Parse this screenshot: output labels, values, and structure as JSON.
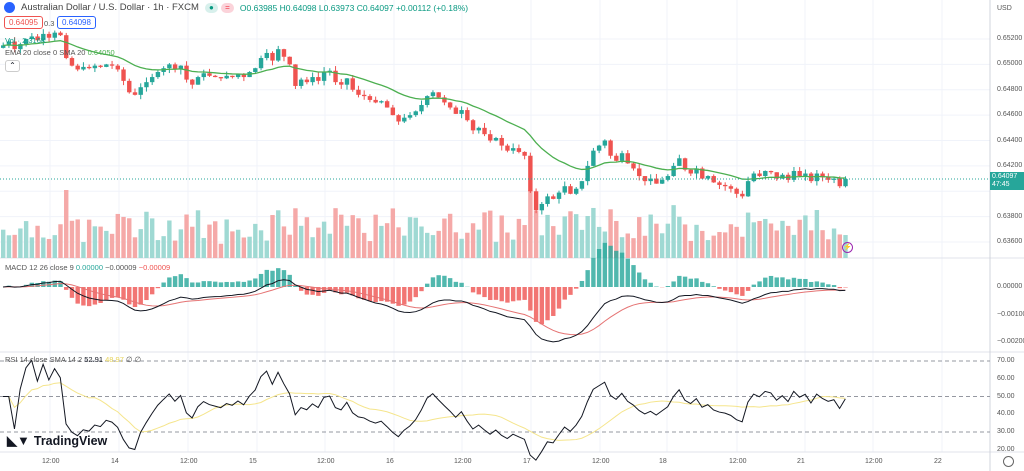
{
  "header": {
    "symbol": "Australian Dollar / U.S. Dollar · 1h · FXCM",
    "open": "O0.63985",
    "high": "H0.64098",
    "low": "L0.63973",
    "close": "C0.64097",
    "change": "+0.00112 (+0.18%)",
    "sell_price": "0.64095",
    "spread": "0.3",
    "buy_price": "0.64098",
    "volume_label": "Vol · 2.316K",
    "ema_label": "EMA 20 close 0 SMA 20",
    "ema_value": "0.64050"
  },
  "macd": {
    "label": "MACD 12 26 close 9",
    "hist": "0.00000",
    "macd": "−0.00009",
    "signal": "−0.00009"
  },
  "rsi": {
    "label": "RSI 14 close SMA 14 2",
    "value": "52.91",
    "sma": "48.97",
    "extra": "∅ ∅"
  },
  "price_axis": {
    "currency": "USD",
    "ticks": [
      "0.65200",
      "0.65000",
      "0.64800",
      "0.64600",
      "0.64400",
      "0.64200",
      "0.63800",
      "0.63600"
    ],
    "current_price": "0.64097",
    "countdown": "47:45"
  },
  "macd_axis": [
    "0.00000",
    "−0.00100",
    "−0.00200"
  ],
  "rsi_axis": [
    "70.00",
    "60.00",
    "50.00",
    "40.00",
    "30.00",
    "20.00"
  ],
  "time_axis": [
    "12:00",
    "14",
    "12:00",
    "15",
    "12:00",
    "16",
    "12:00",
    "17",
    "12:00",
    "18",
    "12:00",
    "21",
    "12:00",
    "22"
  ],
  "brand": "TradingView",
  "colors": {
    "up": "#26a69a",
    "down": "#ef5350",
    "ema": "#4caf50",
    "macd": "#131722",
    "signal": "#e57373",
    "rsi": "#131722",
    "rsi_sma": "#f5e58c"
  },
  "chart_data": {
    "type": "candlestick",
    "closes": [
      0.6515,
      0.6518,
      0.6512,
      0.6516,
      0.652,
      0.6522,
      0.6519,
      0.6524,
      0.6521,
      0.6525,
      0.6523,
      0.6505,
      0.6499,
      0.6496,
      0.6498,
      0.6497,
      0.6499,
      0.6498,
      0.65,
      0.6499,
      0.6496,
      0.6487,
      0.6478,
      0.6476,
      0.6482,
      0.6486,
      0.649,
      0.6494,
      0.6497,
      0.65,
      0.6496,
      0.6499,
      0.6488,
      0.6484,
      0.649,
      0.6493,
      0.6491,
      0.649,
      0.6489,
      0.6491,
      0.649,
      0.6492,
      0.649,
      0.6494,
      0.6497,
      0.6505,
      0.6509,
      0.6503,
      0.6512,
      0.6506,
      0.65,
      0.6483,
      0.6488,
      0.6486,
      0.649,
      0.6487,
      0.6494,
      0.6495,
      0.6486,
      0.6484,
      0.6489,
      0.648,
      0.6476,
      0.6475,
      0.6472,
      0.647,
      0.6471,
      0.6466,
      0.646,
      0.6455,
      0.6458,
      0.646,
      0.6463,
      0.6468,
      0.6475,
      0.6478,
      0.6474,
      0.647,
      0.6466,
      0.6461,
      0.6464,
      0.6456,
      0.6448,
      0.645,
      0.6445,
      0.644,
      0.6442,
      0.6436,
      0.6432,
      0.6434,
      0.6431,
      0.6428,
      0.64,
      0.6385,
      0.639,
      0.6396,
      0.6394,
      0.6399,
      0.6404,
      0.6398,
      0.6402,
      0.6408,
      0.642,
      0.6432,
      0.6436,
      0.644,
      0.6428,
      0.6424,
      0.643,
      0.6422,
      0.6418,
      0.6412,
      0.6408,
      0.641,
      0.6406,
      0.6409,
      0.6412,
      0.642,
      0.6426,
      0.6417,
      0.6414,
      0.6418,
      0.641,
      0.6412,
      0.6407,
      0.6405,
      0.6404,
      0.6402,
      0.6398,
      0.6396,
      0.6408,
      0.6414,
      0.6412,
      0.6416,
      0.6415,
      0.641,
      0.6413,
      0.6409,
      0.6416,
      0.6412,
      0.6414,
      0.6408,
      0.6414,
      0.6411,
      0.6409,
      0.641,
      0.6404,
      0.64097
    ],
    "price_range": [
      0.6348,
      0.6542
    ]
  }
}
